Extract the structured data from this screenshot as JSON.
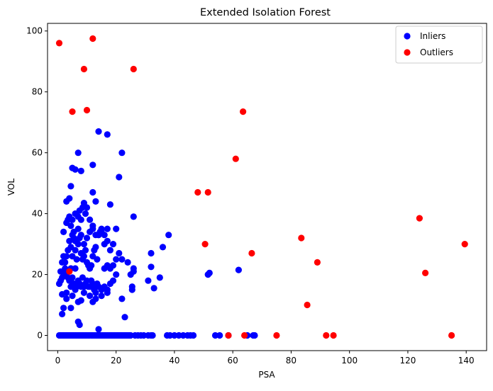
{
  "chart_data": {
    "type": "scatter",
    "title": "Extended Isolation Forest",
    "xlabel": "PSA",
    "ylabel": "VOL",
    "xlim": [
      -3.5,
      147
    ],
    "ylim": [
      -5,
      102.5
    ],
    "xticks": [
      0,
      20,
      40,
      60,
      80,
      100,
      120,
      140
    ],
    "yticks": [
      0,
      20,
      40,
      60,
      80,
      100
    ],
    "legend_position": "top-right",
    "grid": false,
    "series": [
      {
        "name": "Inliers",
        "color": "#0000ff",
        "points": [
          [
            0.5,
            0
          ],
          [
            1,
            0
          ],
          [
            1.5,
            0
          ],
          [
            2,
            0
          ],
          [
            2.5,
            0
          ],
          [
            3,
            0
          ],
          [
            3.5,
            0
          ],
          [
            4,
            0
          ],
          [
            4.5,
            0
          ],
          [
            5,
            0
          ],
          [
            5.5,
            0
          ],
          [
            6,
            0
          ],
          [
            6.5,
            0
          ],
          [
            7,
            0
          ],
          [
            7.5,
            0
          ],
          [
            8,
            0
          ],
          [
            8.5,
            0
          ],
          [
            9,
            0
          ],
          [
            9.5,
            0
          ],
          [
            10,
            0
          ],
          [
            10.5,
            0
          ],
          [
            11,
            0
          ],
          [
            11.5,
            0
          ],
          [
            12,
            0
          ],
          [
            12.5,
            0
          ],
          [
            13,
            0
          ],
          [
            13.5,
            0
          ],
          [
            14,
            0
          ],
          [
            14.5,
            0
          ],
          [
            15,
            0
          ],
          [
            15.5,
            0
          ],
          [
            16,
            0
          ],
          [
            16.5,
            0
          ],
          [
            17,
            0
          ],
          [
            17.5,
            0
          ],
          [
            18,
            0
          ],
          [
            18.5,
            0
          ],
          [
            19,
            0
          ],
          [
            19.5,
            0
          ],
          [
            20,
            0
          ],
          [
            20.5,
            0
          ],
          [
            21,
            0
          ],
          [
            21.5,
            0
          ],
          [
            22,
            0
          ],
          [
            22.5,
            0
          ],
          [
            23,
            0
          ],
          [
            23.5,
            0
          ],
          [
            24,
            0
          ],
          [
            24.5,
            0
          ],
          [
            25,
            0
          ],
          [
            26.5,
            0
          ],
          [
            27.5,
            0
          ],
          [
            28.5,
            0
          ],
          [
            29.5,
            0
          ],
          [
            31,
            0
          ],
          [
            32,
            0
          ],
          [
            32.5,
            0
          ],
          [
            37.5,
            0
          ],
          [
            38.5,
            0
          ],
          [
            40,
            0
          ],
          [
            41.5,
            0
          ],
          [
            43,
            0
          ],
          [
            44.5,
            0
          ],
          [
            45.5,
            0
          ],
          [
            46.5,
            0
          ],
          [
            54,
            0
          ],
          [
            55.5,
            0
          ],
          [
            58.5,
            0
          ],
          [
            65,
            0
          ],
          [
            67,
            0
          ],
          [
            67.5,
            0
          ],
          [
            14,
            2
          ],
          [
            7,
            4.5
          ],
          [
            7.5,
            3.5
          ],
          [
            1.5,
            7
          ],
          [
            2,
            9
          ],
          [
            4.5,
            9
          ],
          [
            3,
            12
          ],
          [
            3,
            14
          ],
          [
            1.5,
            13.5
          ],
          [
            5,
            13
          ],
          [
            6,
            15
          ],
          [
            4.5,
            16
          ],
          [
            9,
            14
          ],
          [
            11,
            13
          ],
          [
            13,
            14
          ],
          [
            15,
            13
          ],
          [
            17,
            14
          ],
          [
            22,
            12
          ],
          [
            25.5,
            16
          ],
          [
            25.5,
            15
          ],
          [
            23,
            6
          ],
          [
            12,
            11
          ],
          [
            13,
            12
          ],
          [
            8,
            11.5
          ],
          [
            7,
            11
          ],
          [
            0.5,
            17
          ],
          [
            1,
            18
          ],
          [
            1,
            21
          ],
          [
            1.5,
            19
          ],
          [
            2,
            21
          ],
          [
            2.5,
            22
          ],
          [
            3,
            20
          ],
          [
            3.5,
            19
          ],
          [
            4,
            18
          ],
          [
            4.5,
            22
          ],
          [
            5,
            19
          ],
          [
            5.5,
            17
          ],
          [
            6,
            22
          ],
          [
            6.5,
            16
          ],
          [
            7,
            18
          ],
          [
            7.5,
            17
          ],
          [
            8,
            16
          ],
          [
            8.5,
            19
          ],
          [
            9,
            16
          ],
          [
            9.5,
            17
          ],
          [
            10,
            18
          ],
          [
            10.5,
            16
          ],
          [
            11,
            16
          ],
          [
            11.5,
            18
          ],
          [
            12,
            17
          ],
          [
            12.5,
            15
          ],
          [
            13,
            16
          ],
          [
            13.5,
            17
          ],
          [
            14,
            16
          ],
          [
            15,
            15
          ],
          [
            16,
            16
          ],
          [
            17,
            15
          ],
          [
            18,
            17
          ],
          [
            19,
            18
          ],
          [
            20,
            20
          ],
          [
            16,
            22
          ],
          [
            17,
            23
          ],
          [
            18,
            22
          ],
          [
            19,
            23
          ],
          [
            20,
            25
          ],
          [
            21,
            27
          ],
          [
            22,
            25
          ],
          [
            24,
            24
          ],
          [
            26,
            21
          ],
          [
            25,
            20
          ],
          [
            26,
            22
          ],
          [
            32,
            22.5
          ],
          [
            31,
            18
          ],
          [
            32,
            27
          ],
          [
            33,
            15.5
          ],
          [
            35,
            19
          ],
          [
            36,
            29
          ],
          [
            38,
            33
          ],
          [
            51.5,
            20
          ],
          [
            52,
            20.5
          ],
          [
            62,
            21.5
          ],
          [
            1.5,
            24
          ],
          [
            2,
            26
          ],
          [
            3,
            26
          ],
          [
            3.5,
            28
          ],
          [
            4,
            31
          ],
          [
            4.5,
            29
          ],
          [
            5,
            26
          ],
          [
            5.5,
            32
          ],
          [
            6,
            28
          ],
          [
            6.5,
            25
          ],
          [
            7,
            30
          ],
          [
            7.5,
            32
          ],
          [
            8,
            27
          ],
          [
            8.5,
            25
          ],
          [
            9,
            26
          ],
          [
            9.5,
            28
          ],
          [
            10,
            24
          ],
          [
            10.5,
            23
          ],
          [
            11,
            22
          ],
          [
            11.5,
            23
          ],
          [
            12,
            26
          ],
          [
            12.5,
            28
          ],
          [
            13,
            29
          ],
          [
            13.5,
            25
          ],
          [
            14,
            33
          ],
          [
            15,
            34
          ],
          [
            16,
            30
          ],
          [
            17,
            31
          ],
          [
            18,
            28
          ],
          [
            19,
            30
          ],
          [
            20,
            35
          ],
          [
            2,
            34
          ],
          [
            3,
            37
          ],
          [
            3.5,
            38
          ],
          [
            4,
            39
          ],
          [
            4.5,
            36
          ],
          [
            5,
            38
          ],
          [
            5.5,
            34
          ],
          [
            6,
            40
          ],
          [
            7,
            39
          ],
          [
            7.5,
            41
          ],
          [
            8,
            38
          ],
          [
            8.5,
            42
          ],
          [
            9,
            43.5
          ],
          [
            9.5,
            40
          ],
          [
            10,
            42
          ],
          [
            11,
            38
          ],
          [
            12,
            35
          ],
          [
            13,
            44
          ],
          [
            14,
            33
          ],
          [
            15,
            35
          ],
          [
            16,
            33
          ],
          [
            17,
            35
          ],
          [
            18,
            43
          ],
          [
            3,
            44
          ],
          [
            4,
            45
          ],
          [
            4.5,
            49
          ],
          [
            2.5,
            24
          ],
          [
            5,
            33
          ],
          [
            6,
            31
          ],
          [
            7,
            35
          ],
          [
            8,
            33
          ],
          [
            9,
            30
          ],
          [
            10,
            32
          ],
          [
            11,
            34
          ],
          [
            12,
            36
          ],
          [
            13,
            33
          ],
          [
            14.5,
            34
          ],
          [
            5,
            55
          ],
          [
            6,
            54.5
          ],
          [
            7,
            60
          ],
          [
            8,
            54
          ],
          [
            12,
            56
          ],
          [
            12,
            47
          ],
          [
            14,
            67
          ],
          [
            17,
            66
          ],
          [
            21,
            52
          ],
          [
            22,
            60
          ],
          [
            26,
            39
          ]
        ]
      },
      {
        "name": "Outliers",
        "color": "#ff0000",
        "points": [
          [
            0.5,
            96
          ],
          [
            12,
            97.5
          ],
          [
            9,
            87.5
          ],
          [
            26,
            87.5
          ],
          [
            5,
            73.5
          ],
          [
            10,
            74
          ],
          [
            4,
            21
          ],
          [
            48,
            47
          ],
          [
            51.5,
            47
          ],
          [
            50.5,
            30
          ],
          [
            61,
            58
          ],
          [
            63.5,
            73.5
          ],
          [
            66.5,
            27
          ],
          [
            83.5,
            32
          ],
          [
            85.5,
            10
          ],
          [
            89,
            24
          ],
          [
            124,
            38.5
          ],
          [
            126,
            20.5
          ],
          [
            139.5,
            30
          ],
          [
            58.5,
            0
          ],
          [
            64,
            0
          ],
          [
            75,
            0
          ],
          [
            92,
            0
          ],
          [
            94.5,
            0
          ],
          [
            135,
            0
          ]
        ]
      }
    ]
  }
}
